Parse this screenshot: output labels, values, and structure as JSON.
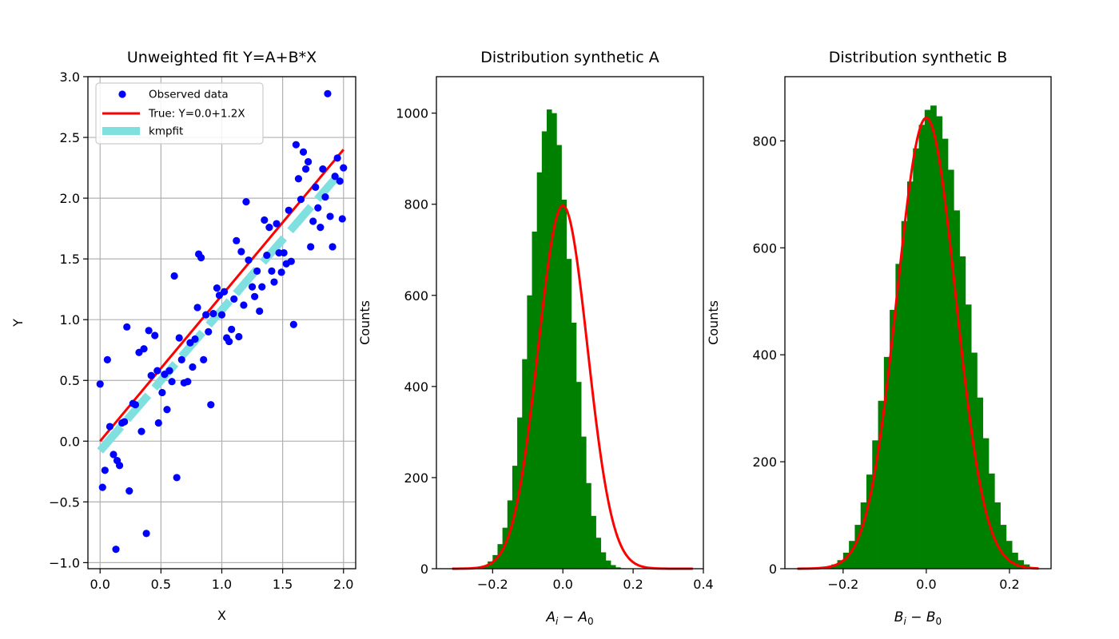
{
  "chart_data": [
    {
      "type": "scatter",
      "title": "Unweighted fit Y=A+B*X",
      "xlabel": "X",
      "ylabel": "Y",
      "xlim": [
        -0.1,
        2.1
      ],
      "ylim": [
        -1.05,
        3.0
      ],
      "xticks": [
        0.0,
        0.5,
        1.0,
        1.5,
        2.0
      ],
      "xtick_labels": [
        "0.0",
        "0.5",
        "1.0",
        "1.5",
        "2.0"
      ],
      "yticks": [
        -1.0,
        -0.5,
        0.0,
        0.5,
        1.0,
        1.5,
        2.0,
        2.5,
        3.0
      ],
      "ytick_labels": [
        "−1.0",
        "−0.5",
        "0.0",
        "0.5",
        "1.0",
        "1.5",
        "2.0",
        "2.5",
        "3.0"
      ],
      "grid": true,
      "legend_position": "top-left",
      "legend": [
        "Observed data",
        "True: Y=0.0+1.2X",
        "kmpfit"
      ],
      "colors": {
        "points": "#0000ff",
        "true_line": "#ff0000",
        "fit_line": "#80dfdf",
        "grid": "#b0b0b0"
      },
      "points": [
        [
          0.0,
          0.47
        ],
        [
          0.02,
          -0.38
        ],
        [
          0.04,
          -0.24
        ],
        [
          0.06,
          0.67
        ],
        [
          0.08,
          0.12
        ],
        [
          0.11,
          -0.11
        ],
        [
          0.13,
          -0.89
        ],
        [
          0.14,
          -0.16
        ],
        [
          0.16,
          -0.2
        ],
        [
          0.18,
          0.15
        ],
        [
          0.2,
          0.16
        ],
        [
          0.22,
          0.94
        ],
        [
          0.24,
          -0.41
        ],
        [
          0.27,
          0.31
        ],
        [
          0.29,
          0.3
        ],
        [
          0.32,
          0.73
        ],
        [
          0.34,
          0.08
        ],
        [
          0.36,
          0.76
        ],
        [
          0.38,
          -0.76
        ],
        [
          0.4,
          0.91
        ],
        [
          0.42,
          0.54
        ],
        [
          0.45,
          0.87
        ],
        [
          0.47,
          0.58
        ],
        [
          0.48,
          0.15
        ],
        [
          0.51,
          0.4
        ],
        [
          0.53,
          0.55
        ],
        [
          0.55,
          0.26
        ],
        [
          0.57,
          0.58
        ],
        [
          0.59,
          0.49
        ],
        [
          0.61,
          1.36
        ],
        [
          0.63,
          -0.3
        ],
        [
          0.65,
          0.85
        ],
        [
          0.67,
          0.67
        ],
        [
          0.69,
          0.48
        ],
        [
          0.72,
          0.49
        ],
        [
          0.74,
          0.81
        ],
        [
          0.76,
          0.61
        ],
        [
          0.78,
          0.84
        ],
        [
          0.8,
          1.1
        ],
        [
          0.81,
          1.54
        ],
        [
          0.83,
          1.51
        ],
        [
          0.85,
          0.67
        ],
        [
          0.87,
          1.04
        ],
        [
          0.89,
          0.9
        ],
        [
          0.91,
          0.3
        ],
        [
          0.93,
          1.05
        ],
        [
          0.96,
          1.26
        ],
        [
          0.98,
          1.2
        ],
        [
          1.0,
          1.04
        ],
        [
          1.02,
          1.23
        ],
        [
          1.04,
          0.85
        ],
        [
          1.06,
          0.82
        ],
        [
          1.08,
          0.92
        ],
        [
          1.1,
          1.17
        ],
        [
          1.12,
          1.65
        ],
        [
          1.14,
          0.86
        ],
        [
          1.16,
          1.56
        ],
        [
          1.18,
          1.12
        ],
        [
          1.2,
          1.97
        ],
        [
          1.22,
          1.49
        ],
        [
          1.25,
          1.27
        ],
        [
          1.27,
          1.19
        ],
        [
          1.29,
          1.4
        ],
        [
          1.31,
          1.07
        ],
        [
          1.33,
          1.27
        ],
        [
          1.35,
          1.82
        ],
        [
          1.37,
          1.53
        ],
        [
          1.39,
          1.76
        ],
        [
          1.41,
          1.4
        ],
        [
          1.43,
          1.31
        ],
        [
          1.45,
          1.79
        ],
        [
          1.47,
          1.55
        ],
        [
          1.49,
          1.39
        ],
        [
          1.51,
          1.55
        ],
        [
          1.53,
          1.46
        ],
        [
          1.55,
          1.9
        ],
        [
          1.57,
          1.48
        ],
        [
          1.59,
          0.96
        ],
        [
          1.61,
          2.44
        ],
        [
          1.63,
          2.16
        ],
        [
          1.65,
          1.99
        ],
        [
          1.67,
          2.38
        ],
        [
          1.69,
          2.24
        ],
        [
          1.71,
          2.3
        ],
        [
          1.73,
          1.6
        ],
        [
          1.75,
          1.81
        ],
        [
          1.77,
          2.09
        ],
        [
          1.79,
          1.92
        ],
        [
          1.81,
          1.76
        ],
        [
          1.83,
          2.24
        ],
        [
          1.85,
          2.01
        ],
        [
          1.87,
          2.86
        ],
        [
          1.89,
          1.85
        ],
        [
          1.91,
          1.6
        ],
        [
          1.93,
          2.18
        ],
        [
          1.95,
          2.33
        ],
        [
          1.97,
          2.14
        ],
        [
          1.99,
          1.83
        ],
        [
          2.0,
          2.25
        ]
      ],
      "true_line": {
        "intercept": 0.0,
        "slope": 1.2,
        "x_range": [
          0.0,
          2.0
        ]
      },
      "fit_line": {
        "intercept": -0.08,
        "slope": 1.16,
        "x_range": [
          0.0,
          2.0
        ]
      }
    },
    {
      "type": "bar",
      "title": "Distribution synthetic A",
      "xlabel": "A_i - A_0",
      "xlabel_parts": {
        "base": "A",
        "sub1": "i",
        "minus": "−",
        "base2": "A",
        "sub2": "0"
      },
      "ylabel": "Counts",
      "xlim": [
        -0.36,
        0.4
      ],
      "ylim": [
        0,
        1080
      ],
      "xticks": [
        -0.2,
        0.0,
        0.2,
        0.4
      ],
      "xtick_labels": [
        "−0.2",
        "0.0",
        "0.2",
        "0.4"
      ],
      "yticks": [
        0,
        200,
        400,
        600,
        800,
        1000
      ],
      "ytick_labels": [
        "0",
        "200",
        "400",
        "600",
        "800",
        "1000"
      ],
      "colors": {
        "bars": "#008000",
        "curve": "#ff0000"
      },
      "bins": [
        -0.312,
        -0.298,
        -0.284,
        -0.27,
        -0.256,
        -0.242,
        -0.228,
        -0.214,
        -0.2,
        -0.186,
        -0.172,
        -0.158,
        -0.144,
        -0.13,
        -0.116,
        -0.102,
        -0.088,
        -0.074,
        -0.06,
        -0.046,
        -0.032,
        -0.018,
        -0.004,
        0.01,
        0.024,
        0.038,
        0.052,
        0.066,
        0.08,
        0.094,
        0.108,
        0.122,
        0.136,
        0.15,
        0.164,
        0.178,
        0.192,
        0.206,
        0.22,
        0.234,
        0.248
      ],
      "counts": [
        0,
        0,
        0,
        1,
        2,
        4,
        7,
        16,
        30,
        54,
        90,
        150,
        226,
        332,
        460,
        600,
        740,
        870,
        960,
        1008,
        1000,
        930,
        810,
        680,
        540,
        410,
        290,
        188,
        116,
        68,
        36,
        18,
        8,
        3,
        1,
        0,
        0,
        0,
        0,
        0
      ],
      "curve": {
        "type": "gaussian",
        "mean": 0.0,
        "sigma": 0.0705,
        "peak": 797,
        "x_range": [
          -0.315,
          0.37
        ]
      }
    },
    {
      "type": "bar",
      "title": "Distribution synthetic B",
      "xlabel": "B_i - B_0",
      "xlabel_parts": {
        "base": "B",
        "sub1": "i",
        "minus": "−",
        "base2": "B",
        "sub2": "0"
      },
      "ylabel": "Counts",
      "xlim": [
        -0.34,
        0.3
      ],
      "ylim": [
        0,
        920
      ],
      "xticks": [
        -0.2,
        0.0,
        0.2
      ],
      "xtick_labels": [
        "−0.2",
        "0.0",
        "0.2"
      ],
      "yticks": [
        0,
        200,
        400,
        600,
        800
      ],
      "ytick_labels": [
        "0",
        "200",
        "400",
        "600",
        "800"
      ],
      "colors": {
        "bars": "#008000",
        "curve": "#ff0000"
      },
      "bins": [
        -0.312,
        -0.298,
        -0.284,
        -0.27,
        -0.256,
        -0.242,
        -0.228,
        -0.214,
        -0.2,
        -0.186,
        -0.172,
        -0.158,
        -0.144,
        -0.13,
        -0.116,
        -0.102,
        -0.088,
        -0.074,
        -0.06,
        -0.046,
        -0.032,
        -0.018,
        -0.004,
        0.01,
        0.024,
        0.038,
        0.052,
        0.066,
        0.08,
        0.094,
        0.108,
        0.122,
        0.136,
        0.15,
        0.164,
        0.178,
        0.192,
        0.206,
        0.22,
        0.234,
        0.248,
        0.262
      ],
      "counts": [
        0,
        0,
        0,
        0,
        1,
        3,
        8,
        16,
        30,
        52,
        82,
        124,
        176,
        240,
        314,
        396,
        484,
        570,
        650,
        724,
        786,
        830,
        858,
        866,
        846,
        804,
        746,
        670,
        584,
        494,
        404,
        320,
        244,
        178,
        124,
        82,
        52,
        30,
        16,
        8,
        3,
        1
      ],
      "curve": {
        "type": "gaussian",
        "mean": 0.0,
        "sigma": 0.0705,
        "peak": 843,
        "x_range": [
          -0.31,
          0.27
        ]
      }
    }
  ]
}
